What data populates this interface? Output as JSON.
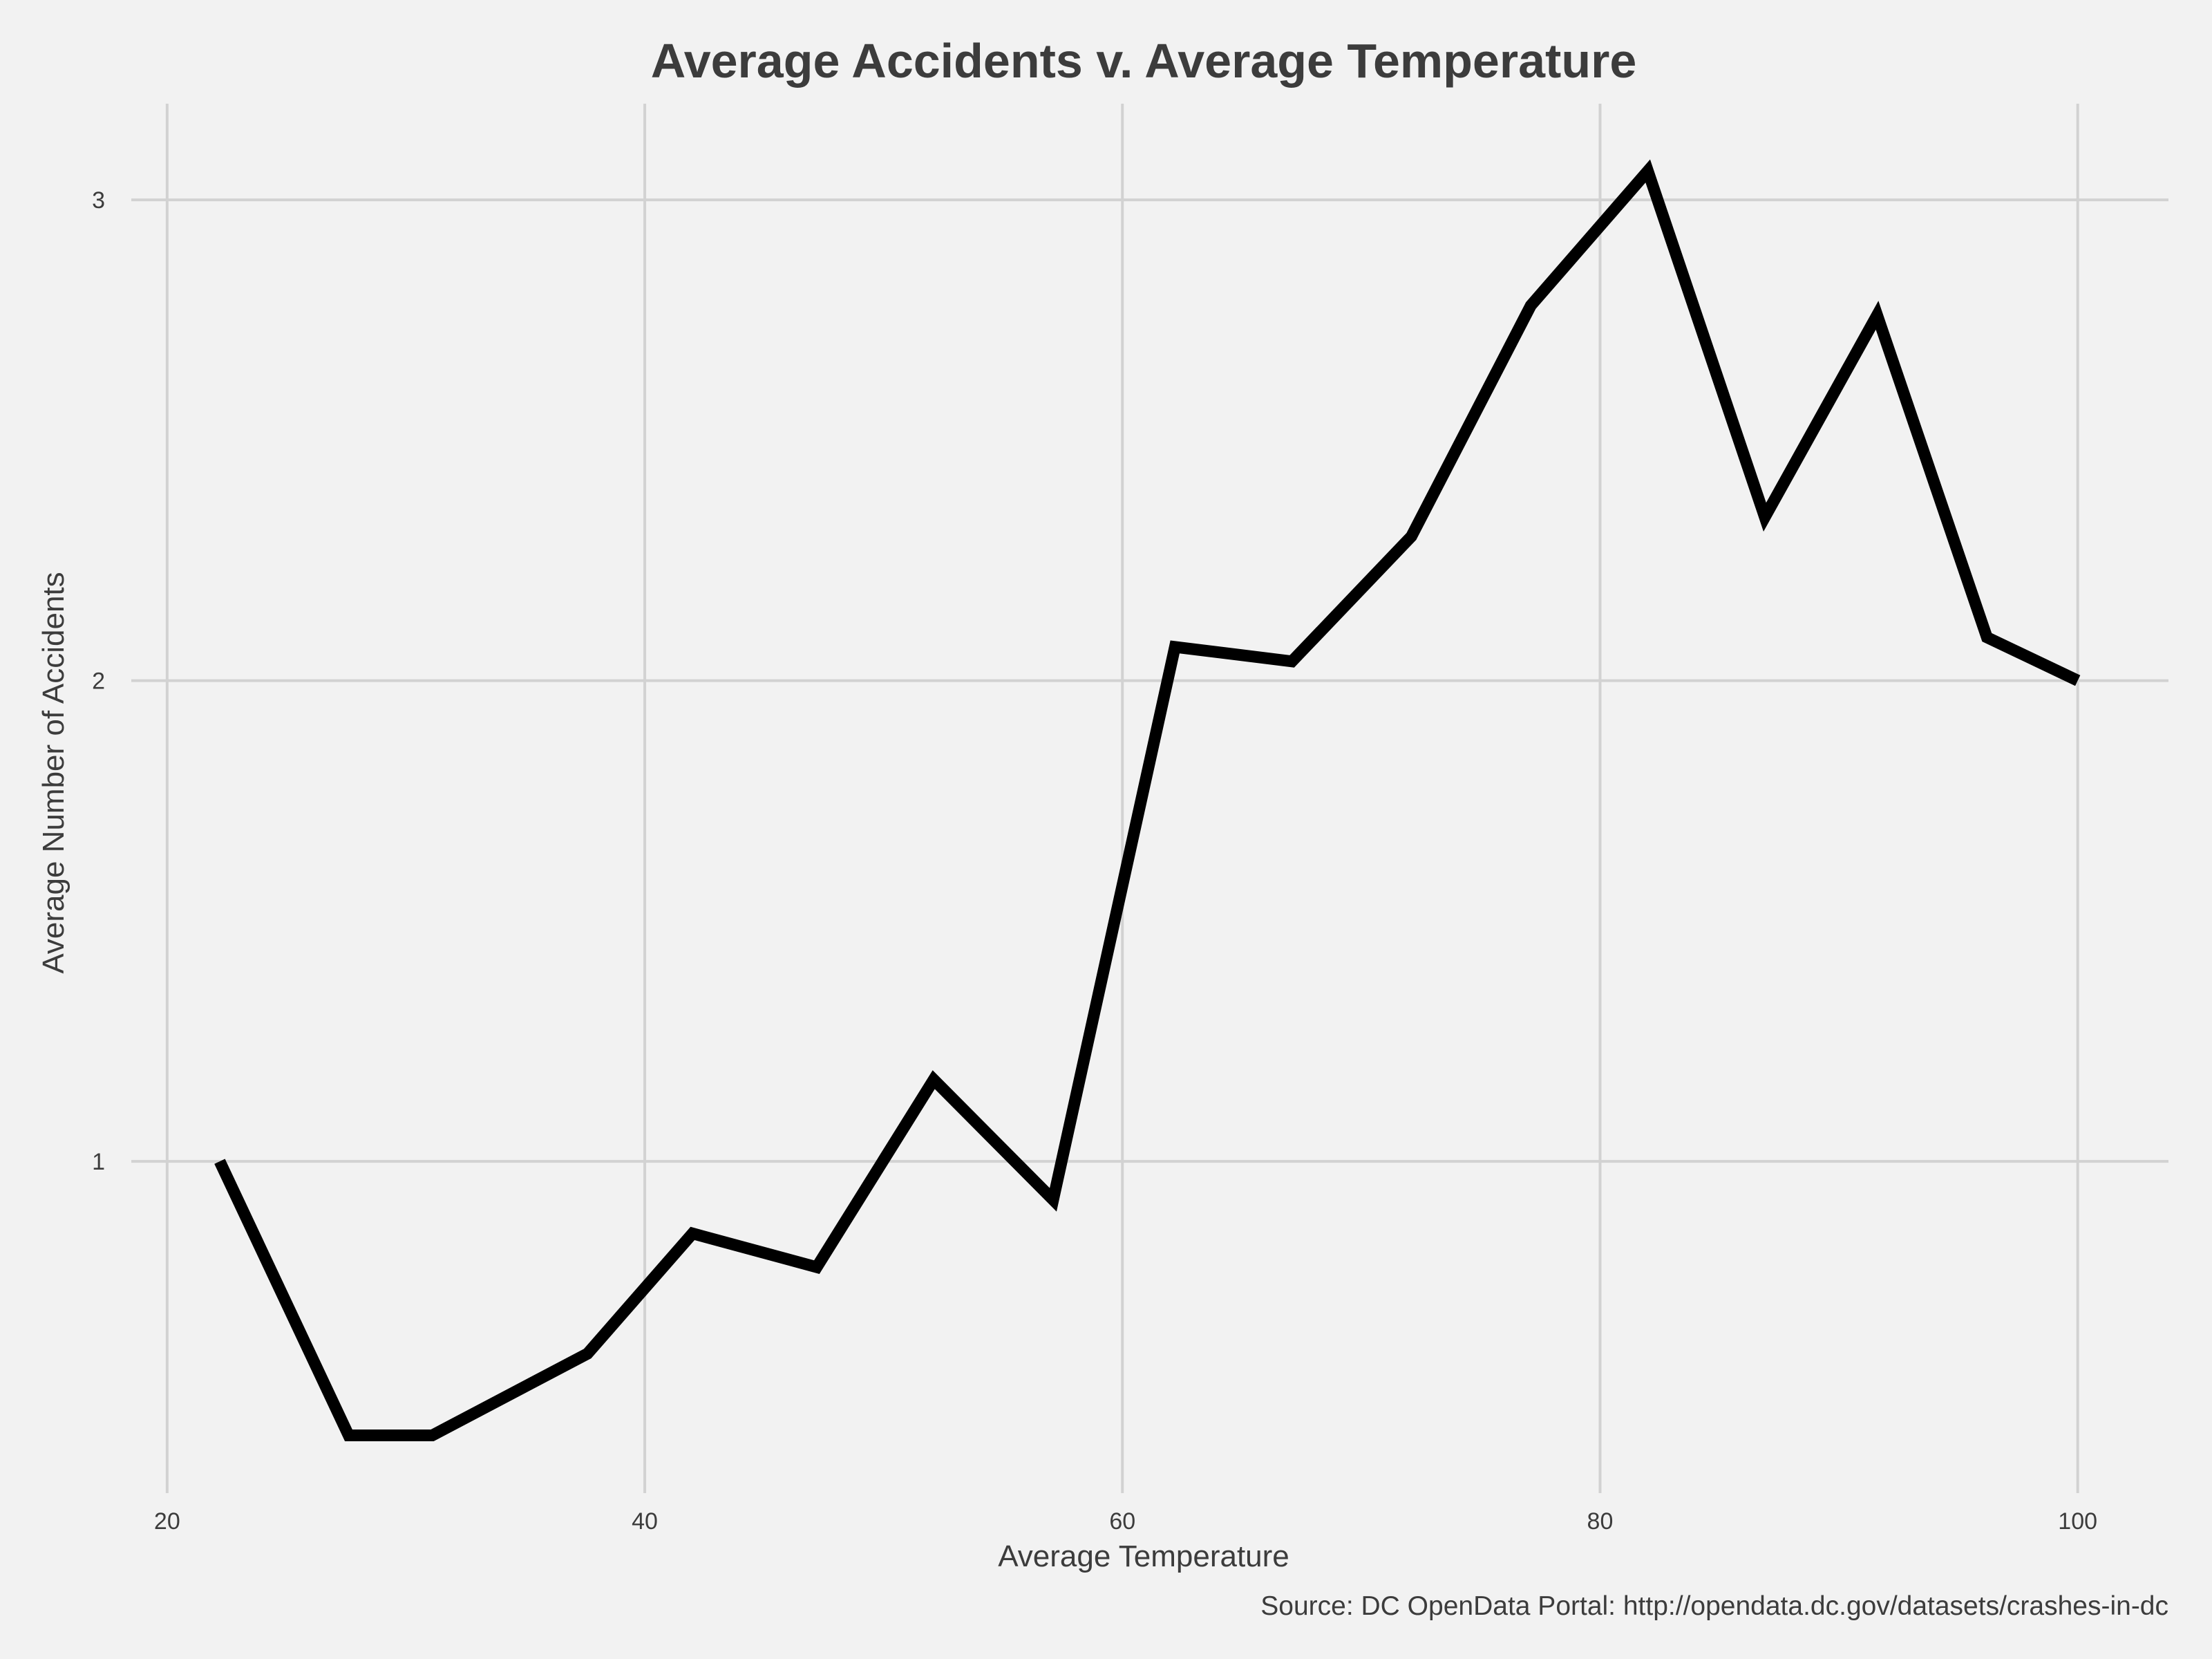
{
  "chart_data": {
    "type": "line",
    "title": "Average Accidents v. Average Temperature",
    "xlabel": "Average Temperature",
    "ylabel": "Average Number of Accidents",
    "source": "Source: DC OpenData Portal: http://opendata.dc.gov/datasets/crashes-in-dc",
    "x_ticks": [
      20,
      40,
      60,
      80,
      100
    ],
    "y_ticks": [
      1,
      2,
      3
    ],
    "xlim": [
      18.5,
      103.8
    ],
    "ylim": [
      0.31,
      3.2
    ],
    "grid": true,
    "legend": "none",
    "series": [
      {
        "color": "#000000",
        "x": [
          22.2,
          27.6,
          31.1,
          37.6,
          42.0,
          47.2,
          52.1,
          57.1,
          62.2,
          67.1,
          72.1,
          77.1,
          82.0,
          86.9,
          91.6,
          96.2,
          100.0
        ],
        "y": [
          1.0,
          0.43,
          0.43,
          0.6,
          0.85,
          0.78,
          1.17,
          0.92,
          2.07,
          2.04,
          2.3,
          2.78,
          3.06,
          2.34,
          2.76,
          2.09,
          2.0
        ]
      }
    ]
  }
}
